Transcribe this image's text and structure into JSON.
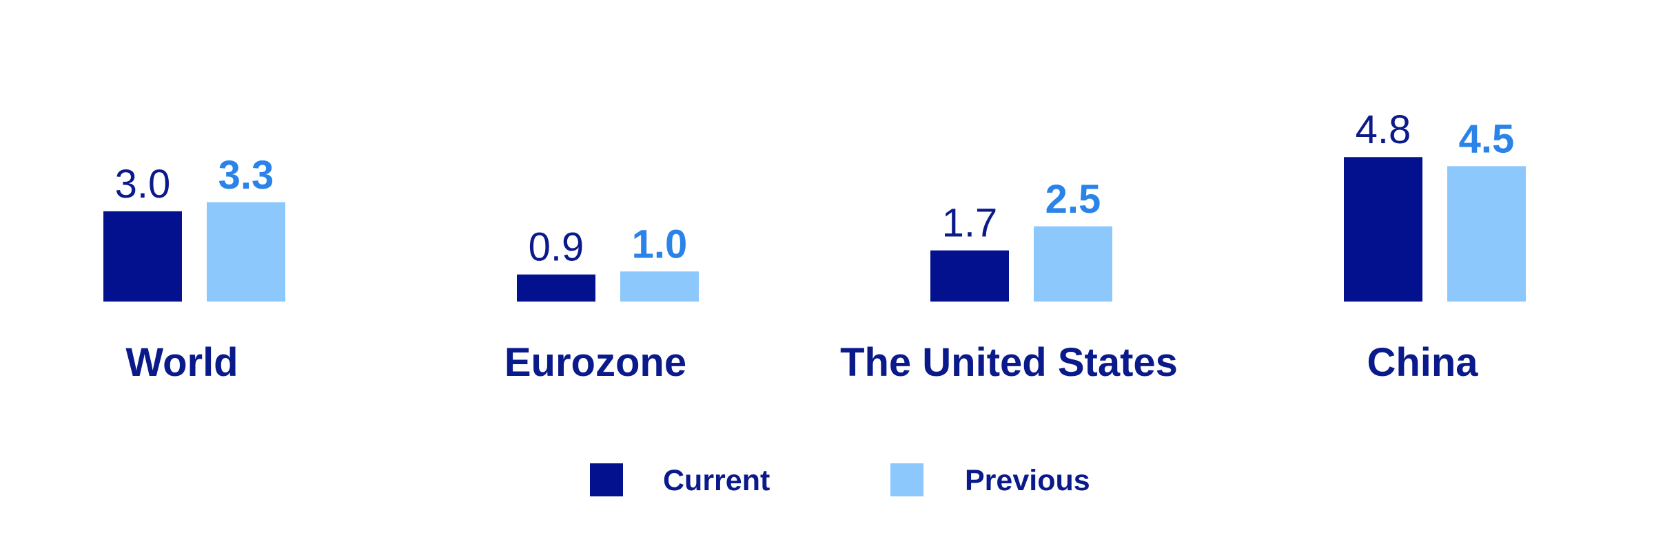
{
  "chart_data": {
    "type": "bar",
    "categories": [
      "World",
      "Eurozone",
      "The United States",
      "China"
    ],
    "series": [
      {
        "name": "Current",
        "values": [
          3.0,
          0.9,
          1.7,
          4.8
        ],
        "color": "#03118f",
        "label_color": "#0b1a8a"
      },
      {
        "name": "Previous",
        "values": [
          3.3,
          1.0,
          2.5,
          4.5
        ],
        "color": "#8cc8fc",
        "label_color": "#2a83e8"
      }
    ],
    "value_labels": [
      [
        "3.0",
        "0.9",
        "1.7",
        "4.8"
      ],
      [
        "3.3",
        "1.0",
        "2.5",
        "4.5"
      ]
    ],
    "category_label_color": "#0b1a8a",
    "legend_text_color": "#0b1a8a",
    "legend_position": "bottom-center",
    "grid": false,
    "y_axis_visible": false,
    "title": "",
    "xlabel": "",
    "ylabel": ""
  }
}
